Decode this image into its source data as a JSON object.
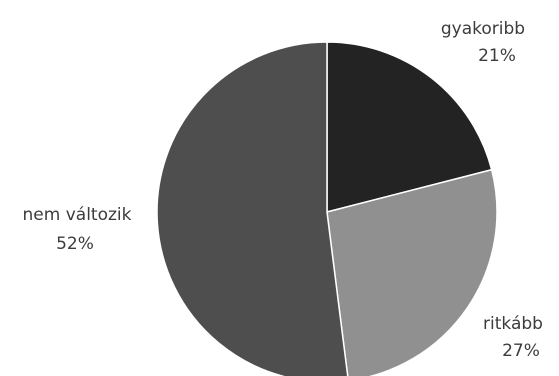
{
  "chart_data": {
    "type": "pie",
    "title": "",
    "categories": [
      "gyakoribb",
      "ritkább",
      "nem változik"
    ],
    "values": [
      21,
      27,
      52
    ],
    "value_labels": [
      "21%",
      "27%",
      "52%"
    ],
    "colors": [
      "#232323",
      "#909090",
      "#4e4e4e"
    ],
    "start_angle_deg": 0,
    "direction": "clockwise",
    "legend": "none",
    "labels_position": "outside"
  }
}
